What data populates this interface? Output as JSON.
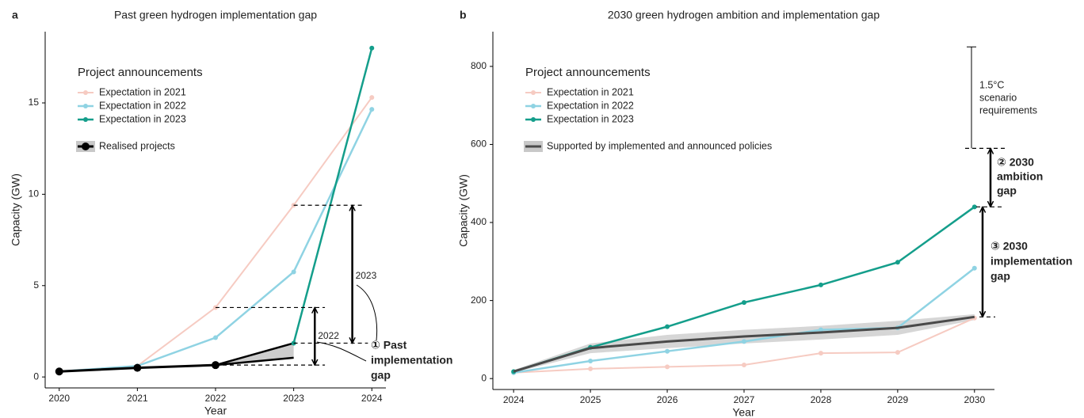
{
  "chart_data": [
    {
      "type": "line",
      "panel_label": "a",
      "title": "Past green hydrogen implementation gap",
      "xlabel": "Year",
      "ylabel": "Capacity (GW)",
      "x": [
        2020,
        2021,
        2022,
        2023,
        2024
      ],
      "xlim": [
        2019.82,
        2024.18
      ],
      "xticks": [
        2020,
        2021,
        2022,
        2023,
        2024
      ],
      "ylim": [
        -0.6,
        18.9
      ],
      "yticks": [
        0,
        5,
        10,
        15
      ],
      "legend_title": "Project announcements",
      "series": [
        {
          "name": "Expectation in 2021",
          "color": "#f6cbc2",
          "values": [
            0.3,
            0.6,
            3.8,
            9.4,
            15.3
          ]
        },
        {
          "name": "Expectation in 2022",
          "color": "#8fd3e3",
          "values": [
            0.3,
            0.6,
            2.15,
            5.75,
            14.65
          ]
        },
        {
          "name": "Expectation in 2023",
          "color": "#149e8b",
          "values": [
            null,
            null,
            null,
            1.85,
            18
          ]
        },
        {
          "name": "Realised projects",
          "color": "#000000",
          "values": [
            0.3,
            0.5,
            0.65,
            null,
            null
          ],
          "band_low": [
            null,
            null,
            0.65,
            1.05,
            null
          ],
          "band_high": [
            null,
            null,
            0.65,
            1.85,
            null
          ]
        }
      ],
      "annotations": [
        {
          "text": "2023"
        },
        {
          "text": "2022"
        },
        {
          "lines": [
            "① Past",
            "implementation",
            "gap"
          ]
        }
      ]
    },
    {
      "type": "line",
      "panel_label": "b",
      "title": "2030 green hydrogen ambition and implementation gap",
      "xlabel": "Year",
      "ylabel": "Capacity (GW)",
      "x": [
        2024,
        2025,
        2026,
        2027,
        2028,
        2029,
        2030
      ],
      "xlim": [
        2023.73,
        2030.26
      ],
      "xticks": [
        2024,
        2025,
        2026,
        2027,
        2028,
        2029,
        2030
      ],
      "ylim": [
        -28,
        889
      ],
      "yticks": [
        0,
        200,
        400,
        600,
        800
      ],
      "legend_title": "Project announcements",
      "series": [
        {
          "name": "Expectation in 2021",
          "color": "#f6cbc2",
          "values": [
            15,
            25,
            30,
            35,
            65,
            67,
            155
          ]
        },
        {
          "name": "Expectation in 2022",
          "color": "#8fd3e3",
          "values": [
            15,
            45,
            70,
            95,
            125,
            130,
            283
          ]
        },
        {
          "name": "Expectation in 2023",
          "color": "#149e8b",
          "values": [
            18,
            80,
            133,
            195,
            240,
            298,
            440
          ]
        },
        {
          "name": "Supported by implemented and announced policies",
          "color": "#4a4a4a",
          "values": [
            18,
            78,
            95,
            108,
            118,
            130,
            158
          ],
          "band_low": [
            15,
            65,
            78,
            90,
            100,
            112,
            150
          ],
          "band_high": [
            22,
            90,
            112,
            125,
            135,
            148,
            165
          ]
        }
      ],
      "requirement": {
        "lines": [
          "1.5°C",
          "scenario",
          "requirements"
        ],
        "range": [
          590,
          850
        ]
      },
      "annotations": [
        {
          "lines": [
            "② 2030",
            "ambition",
            "gap"
          ]
        },
        {
          "lines": [
            "③ 2030",
            "implementation",
            "gap"
          ]
        }
      ]
    }
  ]
}
